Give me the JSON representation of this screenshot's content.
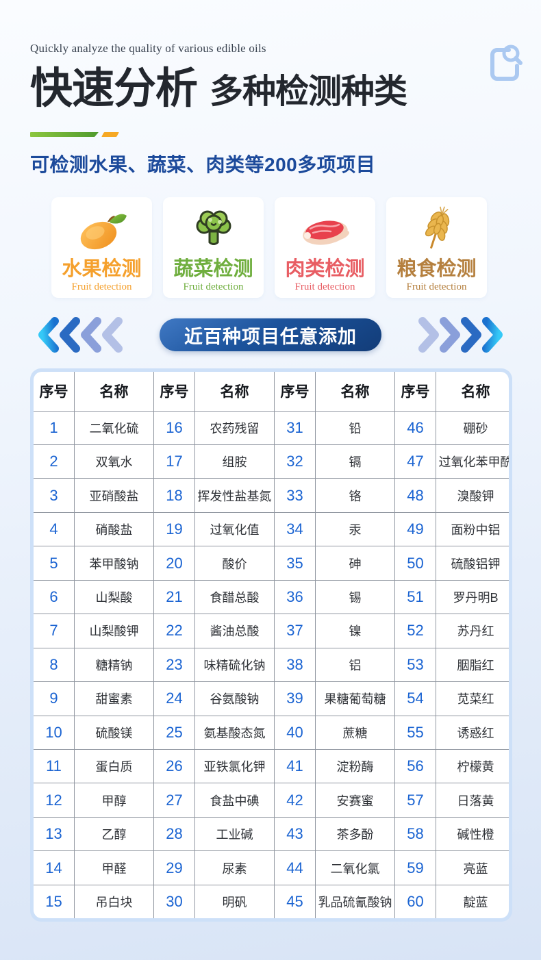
{
  "theme": {
    "accent_blue": "#1c4a9b",
    "number_blue": "#1b64d2",
    "orange": "#f6a824",
    "green": "#5faf33",
    "pill_dark": "#123c78",
    "frame_blue": "#cde0f8",
    "fruit": "#f5a02c",
    "veg": "#6fae3e",
    "meat": "#e85d63",
    "grain": "#b5803f",
    "title_color": "#23272e"
  },
  "header": {
    "eyebrow": "Quickly analyze the quality of various edible oils",
    "title_main": "快速分析",
    "title_sub": "多种检测种类",
    "subtitle": "可检测水果、蔬菜、肉类等200多项项目"
  },
  "categories": [
    {
      "label": "水果检测",
      "sublabel": "Fruit detection",
      "icon": "mango-icon",
      "color": "#f5a02c"
    },
    {
      "label": "蔬菜检测",
      "sublabel": "Fruit detection",
      "icon": "broccoli-icon",
      "color": "#6fae3e"
    },
    {
      "label": "肉类检测",
      "sublabel": "Fruit detection",
      "icon": "meat-icon",
      "color": "#e85d63"
    },
    {
      "label": "粮食检测",
      "sublabel": "Fruit detection",
      "icon": "wheat-icon",
      "color": "#b5803f"
    }
  ],
  "banner": {
    "label": "近百种项目任意添加"
  },
  "table": {
    "headers": [
      "序号",
      "名称",
      "序号",
      "名称",
      "序号",
      "名称",
      "序号",
      "名称"
    ],
    "rows": [
      [
        "1",
        "二氧化硫",
        "16",
        "农药残留",
        "31",
        "铅",
        "46",
        "硼砂"
      ],
      [
        "2",
        "双氧水",
        "17",
        "组胺",
        "32",
        "镉",
        "47",
        "过氧化苯甲酰"
      ],
      [
        "3",
        "亚硝酸盐",
        "18",
        "挥发性盐基氮",
        "33",
        "铬",
        "48",
        "溴酸钾"
      ],
      [
        "4",
        "硝酸盐",
        "19",
        "过氧化值",
        "34",
        "汞",
        "49",
        "面粉中铝"
      ],
      [
        "5",
        "苯甲酸钠",
        "20",
        "酸价",
        "35",
        "砷",
        "50",
        "硫酸铝钾"
      ],
      [
        "6",
        "山梨酸",
        "21",
        "食醋总酸",
        "36",
        "锡",
        "51",
        "罗丹明B"
      ],
      [
        "7",
        "山梨酸钾",
        "22",
        "酱油总酸",
        "37",
        "镍",
        "52",
        "苏丹红"
      ],
      [
        "8",
        "糖精钠",
        "23",
        "味精硫化钠",
        "38",
        "铝",
        "53",
        "胭脂红"
      ],
      [
        "9",
        "甜蜜素",
        "24",
        "谷氨酸钠",
        "39",
        "果糖葡萄糖",
        "54",
        "苋菜红"
      ],
      [
        "10",
        "硫酸镁",
        "25",
        "氨基酸态氮",
        "40",
        "蔗糖",
        "55",
        "诱惑红"
      ],
      [
        "11",
        "蛋白质",
        "26",
        "亚铁氯化钾",
        "41",
        "淀粉酶",
        "56",
        "柠檬黄"
      ],
      [
        "12",
        "甲醇",
        "27",
        "食盐中碘",
        "42",
        "安赛蜜",
        "57",
        "日落黄"
      ],
      [
        "13",
        "乙醇",
        "28",
        "工业碱",
        "43",
        "茶多酚",
        "58",
        "碱性橙"
      ],
      [
        "14",
        "甲醛",
        "29",
        "尿素",
        "44",
        "二氧化氯",
        "59",
        "亮蓝"
      ],
      [
        "15",
        "吊白块",
        "30",
        "明矾",
        "45",
        "乳品硫氰酸钠",
        "60",
        "靛蓝"
      ]
    ]
  }
}
